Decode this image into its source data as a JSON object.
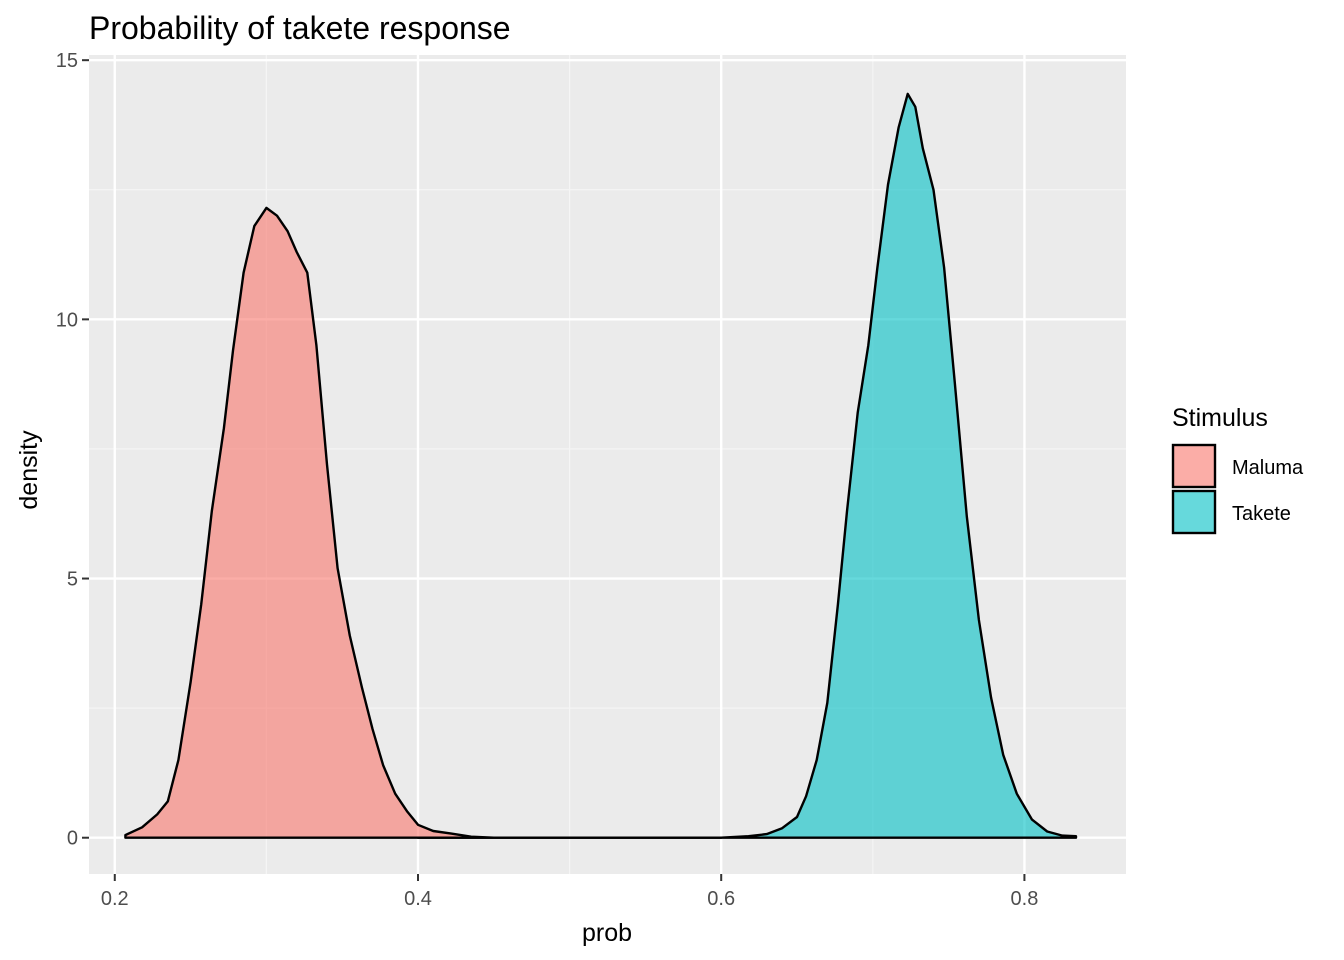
{
  "chart_data": {
    "type": "area",
    "subtype": "density",
    "title": "Probability of takete response",
    "xlabel": "prob",
    "ylabel": "density",
    "xlim": [
      0.183,
      0.867
    ],
    "ylim": [
      -0.7,
      15.1
    ],
    "x_ticks": [
      0.2,
      0.4,
      0.6,
      0.8
    ],
    "x_tick_labels": [
      "0.2",
      "0.4",
      "0.6",
      "0.8"
    ],
    "y_ticks": [
      0,
      5,
      10,
      15
    ],
    "y_tick_labels": [
      "0",
      "5",
      "10",
      "15"
    ],
    "grid": true,
    "legend": {
      "title": "Stimulus",
      "position": "right"
    },
    "series": [
      {
        "name": "Maluma",
        "color": "#F8766D",
        "points": [
          [
            0.207,
            0.05
          ],
          [
            0.218,
            0.2
          ],
          [
            0.228,
            0.45
          ],
          [
            0.235,
            0.7
          ],
          [
            0.242,
            1.5
          ],
          [
            0.25,
            3.0
          ],
          [
            0.257,
            4.5
          ],
          [
            0.264,
            6.3
          ],
          [
            0.272,
            7.9
          ],
          [
            0.278,
            9.4
          ],
          [
            0.285,
            10.9
          ],
          [
            0.292,
            11.8
          ],
          [
            0.3,
            12.15
          ],
          [
            0.307,
            12.0
          ],
          [
            0.314,
            11.7
          ],
          [
            0.32,
            11.3
          ],
          [
            0.327,
            10.9
          ],
          [
            0.333,
            9.5
          ],
          [
            0.34,
            7.2
          ],
          [
            0.347,
            5.2
          ],
          [
            0.355,
            3.9
          ],
          [
            0.363,
            2.9
          ],
          [
            0.37,
            2.1
          ],
          [
            0.377,
            1.4
          ],
          [
            0.385,
            0.85
          ],
          [
            0.393,
            0.5
          ],
          [
            0.4,
            0.25
          ],
          [
            0.41,
            0.13
          ],
          [
            0.422,
            0.08
          ],
          [
            0.435,
            0.02
          ],
          [
            0.45,
            0.0
          ],
          [
            0.6,
            0.0
          ]
        ]
      },
      {
        "name": "Takete",
        "color": "#00BFC4",
        "points": [
          [
            0.4,
            0.0
          ],
          [
            0.6,
            0.0
          ],
          [
            0.618,
            0.03
          ],
          [
            0.63,
            0.07
          ],
          [
            0.64,
            0.18
          ],
          [
            0.65,
            0.4
          ],
          [
            0.656,
            0.8
          ],
          [
            0.663,
            1.5
          ],
          [
            0.67,
            2.6
          ],
          [
            0.677,
            4.5
          ],
          [
            0.683,
            6.3
          ],
          [
            0.69,
            8.2
          ],
          [
            0.697,
            9.5
          ],
          [
            0.703,
            11.0
          ],
          [
            0.71,
            12.6
          ],
          [
            0.717,
            13.7
          ],
          [
            0.723,
            14.35
          ],
          [
            0.728,
            14.1
          ],
          [
            0.733,
            13.3
          ],
          [
            0.74,
            12.5
          ],
          [
            0.747,
            11.0
          ],
          [
            0.754,
            8.8
          ],
          [
            0.762,
            6.2
          ],
          [
            0.77,
            4.2
          ],
          [
            0.778,
            2.7
          ],
          [
            0.786,
            1.6
          ],
          [
            0.795,
            0.85
          ],
          [
            0.805,
            0.35
          ],
          [
            0.815,
            0.12
          ],
          [
            0.825,
            0.04
          ],
          [
            0.834,
            0.03
          ]
        ]
      }
    ]
  }
}
